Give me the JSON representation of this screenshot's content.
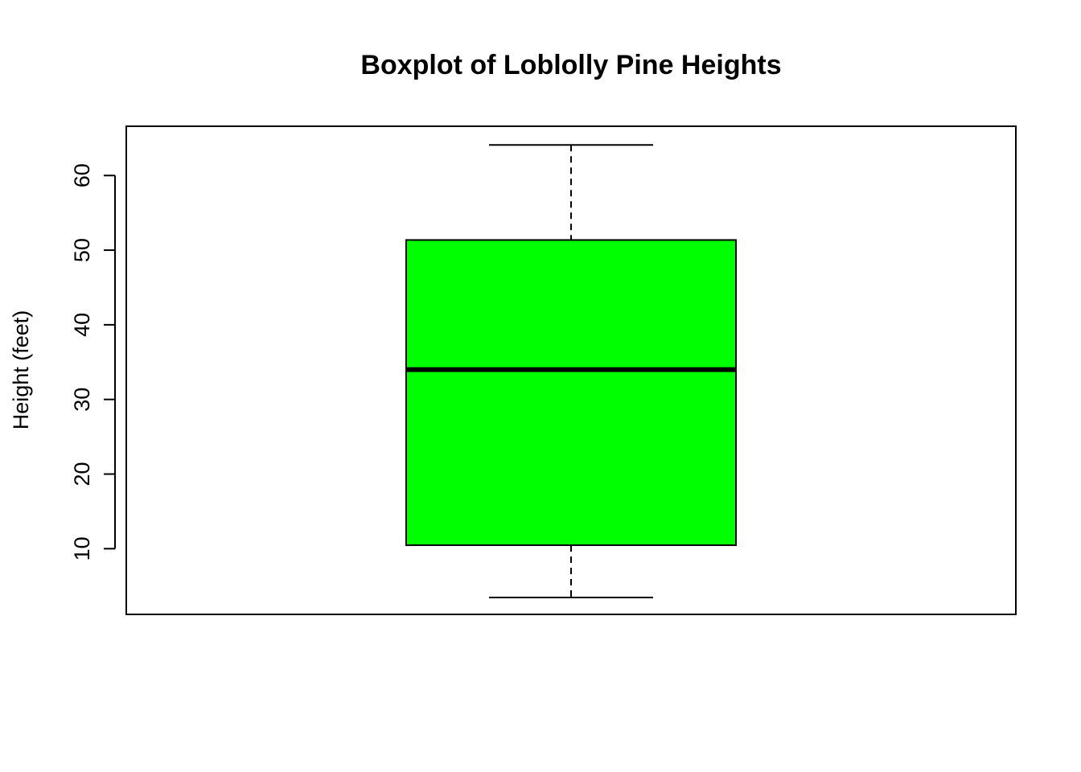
{
  "chart_data": {
    "type": "box",
    "title": "Boxplot of Loblolly Pine Heights",
    "xlabel": "",
    "ylabel": "Height (feet)",
    "y_ticks": [
      10,
      20,
      30,
      40,
      50,
      60
    ],
    "y_tick_labels": [
      "10",
      "20",
      "30",
      "40",
      "50",
      "60"
    ],
    "ylim": [
      1.2,
      66.6
    ],
    "grid": false,
    "legend": "none",
    "box": {
      "min": 3.46,
      "q1": 10.47,
      "median": 34.0,
      "q3": 51.36,
      "max": 64.1
    },
    "box_color": "#00ff00"
  }
}
